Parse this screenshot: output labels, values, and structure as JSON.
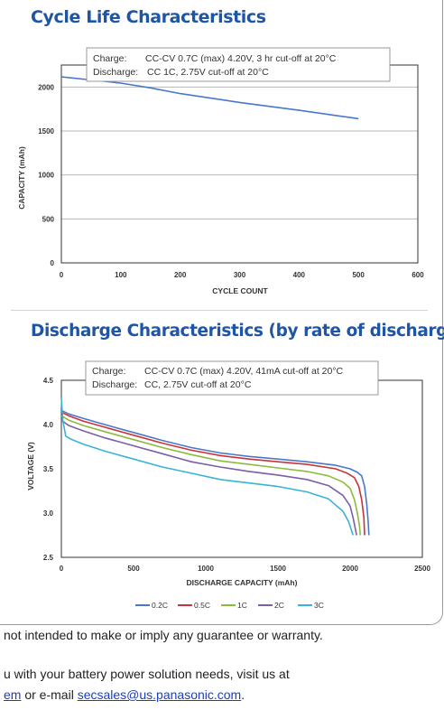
{
  "headings": {
    "cycle": "Cycle Life Characteristics",
    "discharge": "Discharge Characteristics (by rate of discharge)"
  },
  "footer": {
    "disclaimer": "not intended to make or imply any guarantee or warranty.",
    "line1": "u with your battery power solution needs, visit us at",
    "line2_link": "em",
    "line2_mid": " or e-mail ",
    "email": "secsales@us.panasonic.com",
    "line2_end": "."
  },
  "chart_data": [
    {
      "type": "line",
      "title": "Cycle Life Characteristics",
      "xlabel": "CYCLE COUNT",
      "ylabel": "CAPACITY (mAh)",
      "xlim": [
        0,
        600
      ],
      "ylim": [
        0,
        2250
      ],
      "xticks": [
        0,
        100,
        200,
        300,
        400,
        500,
        600
      ],
      "yticks": [
        0,
        500,
        1000,
        1500,
        2000
      ],
      "grid": true,
      "annotation": {
        "charge_label": "Charge:",
        "charge_text": "CC-CV 0.7C (max) 4.20V, 3 hr cut-off at 20°C",
        "discharge_label": "Discharge:",
        "discharge_text": "CC 1C, 2.75V cut-off at 20°C"
      },
      "colors": {
        "line": "#4a78c9"
      },
      "series": [
        {
          "x": [
            0,
            50,
            100,
            150,
            200,
            300,
            400,
            500
          ],
          "y": [
            2115,
            2080,
            2045,
            1990,
            1925,
            1825,
            1735,
            1640
          ]
        }
      ]
    },
    {
      "type": "line",
      "title": "Discharge Characteristics (by rate of discharge)",
      "xlabel": "DISCHARGE CAPACITY (mAh)",
      "ylabel": "VOLTAGE (V)",
      "xlim": [
        0,
        2500
      ],
      "ylim": [
        2.5,
        4.5
      ],
      "xticks": [
        0,
        500,
        1000,
        1500,
        2000,
        2500
      ],
      "yticks": [
        2.5,
        3.0,
        3.5,
        4.0,
        4.5
      ],
      "grid": false,
      "legend_position": "bottom",
      "annotation": {
        "charge_label": "Charge:",
        "charge_text": "CC-CV 0.7C (max) 4.20V, 41mA cut-off at 20°C",
        "discharge_label": "Discharge:",
        "discharge_text": "CC, 2.75V cut-off at 20°C"
      },
      "series": [
        {
          "name": "0.2C",
          "color": "#4a78c9",
          "x": [
            0,
            50,
            150,
            300,
            500,
            700,
            900,
            1100,
            1300,
            1500,
            1700,
            1900,
            2000,
            2050,
            2080,
            2100,
            2115,
            2125,
            2130
          ],
          "y": [
            4.16,
            4.12,
            4.07,
            4.0,
            3.91,
            3.82,
            3.74,
            3.68,
            3.64,
            3.61,
            3.58,
            3.54,
            3.5,
            3.46,
            3.42,
            3.3,
            3.1,
            2.9,
            2.75
          ]
        },
        {
          "name": "0.5C",
          "color": "#c8323a",
          "x": [
            0,
            50,
            150,
            300,
            500,
            700,
            900,
            1100,
            1300,
            1500,
            1700,
            1900,
            1980,
            2030,
            2060,
            2080,
            2095,
            2100
          ],
          "y": [
            4.14,
            4.1,
            4.04,
            3.97,
            3.88,
            3.79,
            3.71,
            3.65,
            3.61,
            3.58,
            3.55,
            3.5,
            3.45,
            3.4,
            3.3,
            3.15,
            2.95,
            2.75
          ]
        },
        {
          "name": "1C",
          "color": "#8cbb3c",
          "x": [
            0,
            50,
            150,
            300,
            500,
            700,
            900,
            1100,
            1300,
            1500,
            1700,
            1850,
            1950,
            2000,
            2030,
            2050,
            2065,
            2070
          ],
          "y": [
            4.1,
            4.05,
            3.99,
            3.92,
            3.83,
            3.74,
            3.66,
            3.59,
            3.55,
            3.51,
            3.47,
            3.42,
            3.35,
            3.28,
            3.15,
            3.0,
            2.85,
            2.75
          ]
        },
        {
          "name": "2C",
          "color": "#7a5fa8",
          "x": [
            0,
            50,
            150,
            300,
            500,
            700,
            900,
            1100,
            1300,
            1500,
            1700,
            1850,
            1950,
            2000,
            2020,
            2035,
            2045
          ],
          "y": [
            4.05,
            3.99,
            3.93,
            3.85,
            3.76,
            3.67,
            3.58,
            3.52,
            3.47,
            3.43,
            3.38,
            3.31,
            3.2,
            3.08,
            2.95,
            2.83,
            2.75
          ]
        },
        {
          "name": "3C",
          "color": "#38b4d4",
          "x": [
            0,
            10,
            30,
            60,
            150,
            300,
            500,
            700,
            900,
            1100,
            1300,
            1500,
            1700,
            1850,
            1950,
            1990,
            2010,
            2020
          ],
          "y": [
            4.3,
            4.05,
            3.87,
            3.84,
            3.78,
            3.7,
            3.61,
            3.52,
            3.45,
            3.38,
            3.34,
            3.3,
            3.24,
            3.16,
            3.02,
            2.9,
            2.8,
            2.75
          ]
        }
      ]
    }
  ]
}
